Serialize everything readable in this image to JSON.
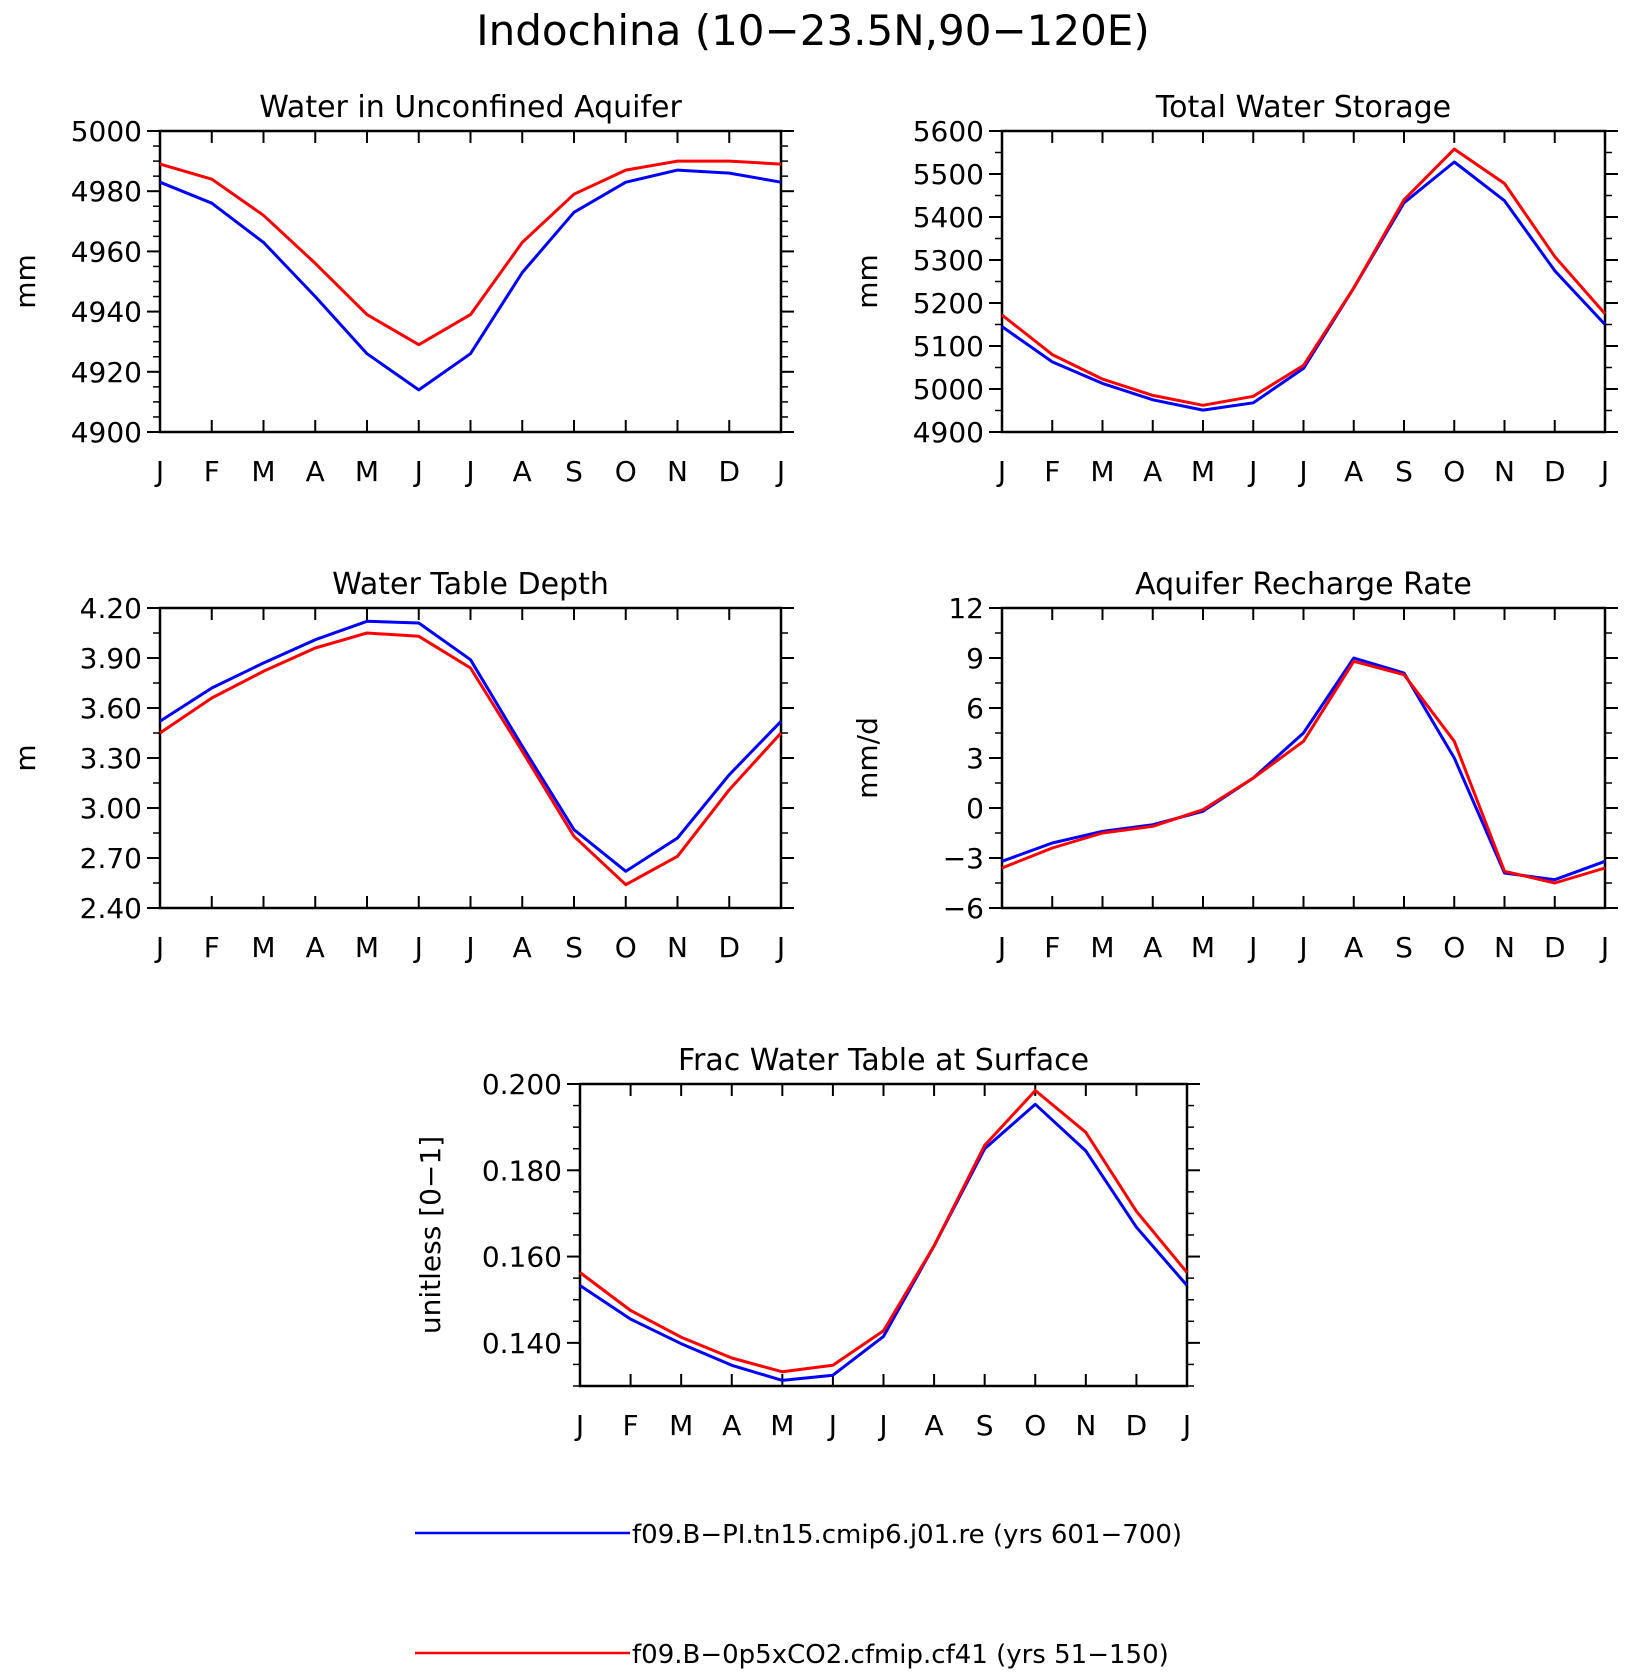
{
  "figure": {
    "title": "Indochina (10−23.5N,90−120E)"
  },
  "legend": [
    {
      "name": "f09.B−PI.tn15.cmip6.j01.re (yrs 601−700)",
      "color": "#0000ff"
    },
    {
      "name": "f09.B−0p5xCO2.cfmip.cf41 (yrs 51−150)",
      "color": "#ff0000"
    }
  ],
  "chart_data": [
    {
      "id": "aquifer",
      "type": "line",
      "title": "Water in Unconfined Aquifer",
      "ylabel": "mm",
      "categories": [
        "J",
        "F",
        "M",
        "A",
        "M",
        "J",
        "J",
        "A",
        "S",
        "O",
        "N",
        "D",
        "J"
      ],
      "ylim": [
        4900,
        5000
      ],
      "yticks": [
        "4900",
        "4920",
        "4940",
        "4960",
        "4980",
        "5000"
      ],
      "yminor_step": 5,
      "series": [
        {
          "color": "#0000ff",
          "values": [
            4983,
            4976,
            4963,
            4945,
            4926,
            4914,
            4926,
            4953,
            4973,
            4983,
            4987,
            4986,
            4983
          ]
        },
        {
          "color": "#ff0000",
          "values": [
            4989,
            4984,
            4972,
            4956,
            4939,
            4929,
            4939,
            4963,
            4979,
            4987,
            4990,
            4990,
            4989
          ]
        }
      ]
    },
    {
      "id": "storage",
      "type": "line",
      "title": "Total Water Storage",
      "ylabel": "mm",
      "categories": [
        "J",
        "F",
        "M",
        "A",
        "M",
        "J",
        "J",
        "A",
        "S",
        "O",
        "N",
        "D",
        "J"
      ],
      "ylim": [
        4900,
        5600
      ],
      "yticks": [
        "4900",
        "5000",
        "5100",
        "5200",
        "5300",
        "5400",
        "5500",
        "5600"
      ],
      "yminor_step": 50,
      "series": [
        {
          "color": "#0000ff",
          "values": [
            5145,
            5063,
            5013,
            4975,
            4951,
            4968,
            5048,
            5235,
            5433,
            5528,
            5438,
            5275,
            5150
          ]
        },
        {
          "color": "#ff0000",
          "values": [
            5172,
            5080,
            5023,
            4985,
            4962,
            4983,
            5055,
            5235,
            5440,
            5558,
            5478,
            5308,
            5175
          ]
        }
      ]
    },
    {
      "id": "wtd",
      "type": "line",
      "title": "Water Table Depth",
      "ylabel": "m",
      "categories": [
        "J",
        "F",
        "M",
        "A",
        "M",
        "J",
        "J",
        "A",
        "S",
        "O",
        "N",
        "D",
        "J"
      ],
      "ylim": [
        2.4,
        4.2
      ],
      "yticks": [
        "2.40",
        "2.70",
        "3.00",
        "3.30",
        "3.60",
        "3.90",
        "4.20"
      ],
      "yminor_step": 0.15,
      "series": [
        {
          "color": "#0000ff",
          "values": [
            3.52,
            3.72,
            3.87,
            4.01,
            4.12,
            4.11,
            3.89,
            3.37,
            2.87,
            2.62,
            2.82,
            3.2,
            3.52
          ]
        },
        {
          "color": "#ff0000",
          "values": [
            3.45,
            3.66,
            3.82,
            3.96,
            4.05,
            4.03,
            3.84,
            3.34,
            2.83,
            2.54,
            2.71,
            3.11,
            3.45
          ]
        }
      ]
    },
    {
      "id": "recharge",
      "type": "line",
      "title": "Aquifer Recharge Rate",
      "ylabel": "mm/d",
      "categories": [
        "J",
        "F",
        "M",
        "A",
        "M",
        "J",
        "J",
        "A",
        "S",
        "O",
        "N",
        "D",
        "J"
      ],
      "ylim": [
        -6,
        12
      ],
      "yticks": [
        "−6",
        "−3",
        "0",
        "3",
        "6",
        "9",
        "12"
      ],
      "yminor_step": 1.5,
      "series": [
        {
          "color": "#0000ff",
          "values": [
            -3.2,
            -2.1,
            -1.4,
            -1.0,
            -0.2,
            1.8,
            4.5,
            9.0,
            8.1,
            3.0,
            -3.9,
            -4.3,
            -3.2
          ]
        },
        {
          "color": "#ff0000",
          "values": [
            -3.6,
            -2.4,
            -1.5,
            -1.1,
            -0.1,
            1.8,
            4.0,
            8.8,
            8.0,
            4.0,
            -3.8,
            -4.5,
            -3.6
          ]
        }
      ]
    },
    {
      "id": "frac",
      "type": "line",
      "title": "Frac Water Table at Surface",
      "ylabel": "unitless [0−1]",
      "categories": [
        "J",
        "F",
        "M",
        "A",
        "M",
        "J",
        "J",
        "A",
        "S",
        "O",
        "N",
        "D",
        "J"
      ],
      "ylim": [
        0.13,
        0.2
      ],
      "yticks": [
        "0.140",
        "0.160",
        "0.180",
        "0.200"
      ],
      "ytick_start": 0.14,
      "ytick_step": 0.02,
      "yminor_step": 0.005,
      "series": [
        {
          "color": "#0000ff",
          "values": [
            0.1533,
            0.1455,
            0.1398,
            0.1348,
            0.1313,
            0.1325,
            0.1415,
            0.1625,
            0.185,
            0.1953,
            0.1845,
            0.1668,
            0.1533
          ]
        },
        {
          "color": "#ff0000",
          "values": [
            0.1563,
            0.1475,
            0.1413,
            0.1365,
            0.1333,
            0.1348,
            0.1428,
            0.1625,
            0.1858,
            0.1985,
            0.1888,
            0.1705,
            0.1563
          ]
        }
      ]
    }
  ]
}
